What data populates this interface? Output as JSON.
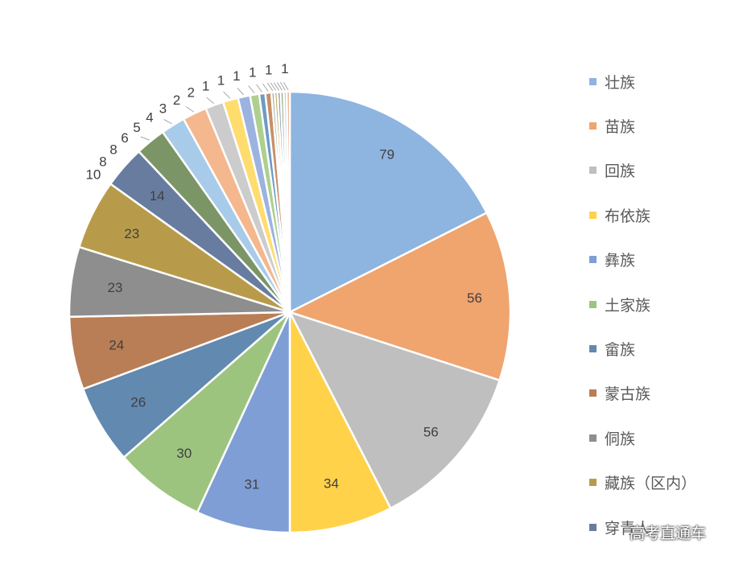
{
  "chart_data": {
    "type": "pie",
    "title": "",
    "slices": [
      {
        "label": "壮族",
        "value": 79,
        "color": "#8EB4E0"
      },
      {
        "label": "苗族",
        "value": 56,
        "color": "#F0A46E"
      },
      {
        "label": "回族",
        "value": 56,
        "color": "#BFBFBF"
      },
      {
        "label": "布依族",
        "value": 34,
        "color": "#FFD24A"
      },
      {
        "label": "彝族",
        "value": 31,
        "color": "#7F9ED5"
      },
      {
        "label": "土家族",
        "value": 30,
        "color": "#9CC47E"
      },
      {
        "label": "畲族",
        "value": 26,
        "color": "#6289B0"
      },
      {
        "label": "蒙古族",
        "value": 24,
        "color": "#B97E56"
      },
      {
        "label": "侗族",
        "value": 23,
        "color": "#8E8E8E"
      },
      {
        "label": "藏族（区内）",
        "value": 23,
        "color": "#B89B4A"
      },
      {
        "label": "穿青人",
        "value": 14,
        "color": "#687CA0"
      },
      {
        "label": "",
        "value": 10,
        "color": "#7B9566"
      },
      {
        "label": "",
        "value": 8,
        "color": "#A9CBEA"
      },
      {
        "label": "",
        "value": 8,
        "color": "#F4B78E"
      },
      {
        "label": "",
        "value": 6,
        "color": "#CCCCCC"
      },
      {
        "label": "",
        "value": 5,
        "color": "#FFDC6E"
      },
      {
        "label": "",
        "value": 4,
        "color": "#9CB3E0"
      },
      {
        "label": "",
        "value": 3,
        "color": "#AED08F"
      },
      {
        "label": "",
        "value": 2,
        "color": "#6D9AC6"
      },
      {
        "label": "",
        "value": 2,
        "color": "#C78F66"
      },
      {
        "label": "",
        "value": 1,
        "color": "#A5A5A5"
      },
      {
        "label": "",
        "value": 1,
        "color": "#C6A852"
      },
      {
        "label": "",
        "value": 1,
        "color": "#7D8FB2"
      },
      {
        "label": "",
        "value": 1,
        "color": "#8AA473"
      },
      {
        "label": "",
        "value": 1,
        "color": "#B7D3EE"
      },
      {
        "label": "",
        "value": 1,
        "color": "#E9A37A"
      }
    ],
    "legend_position": "right",
    "data_labels": true
  },
  "watermark": "高考直通车"
}
